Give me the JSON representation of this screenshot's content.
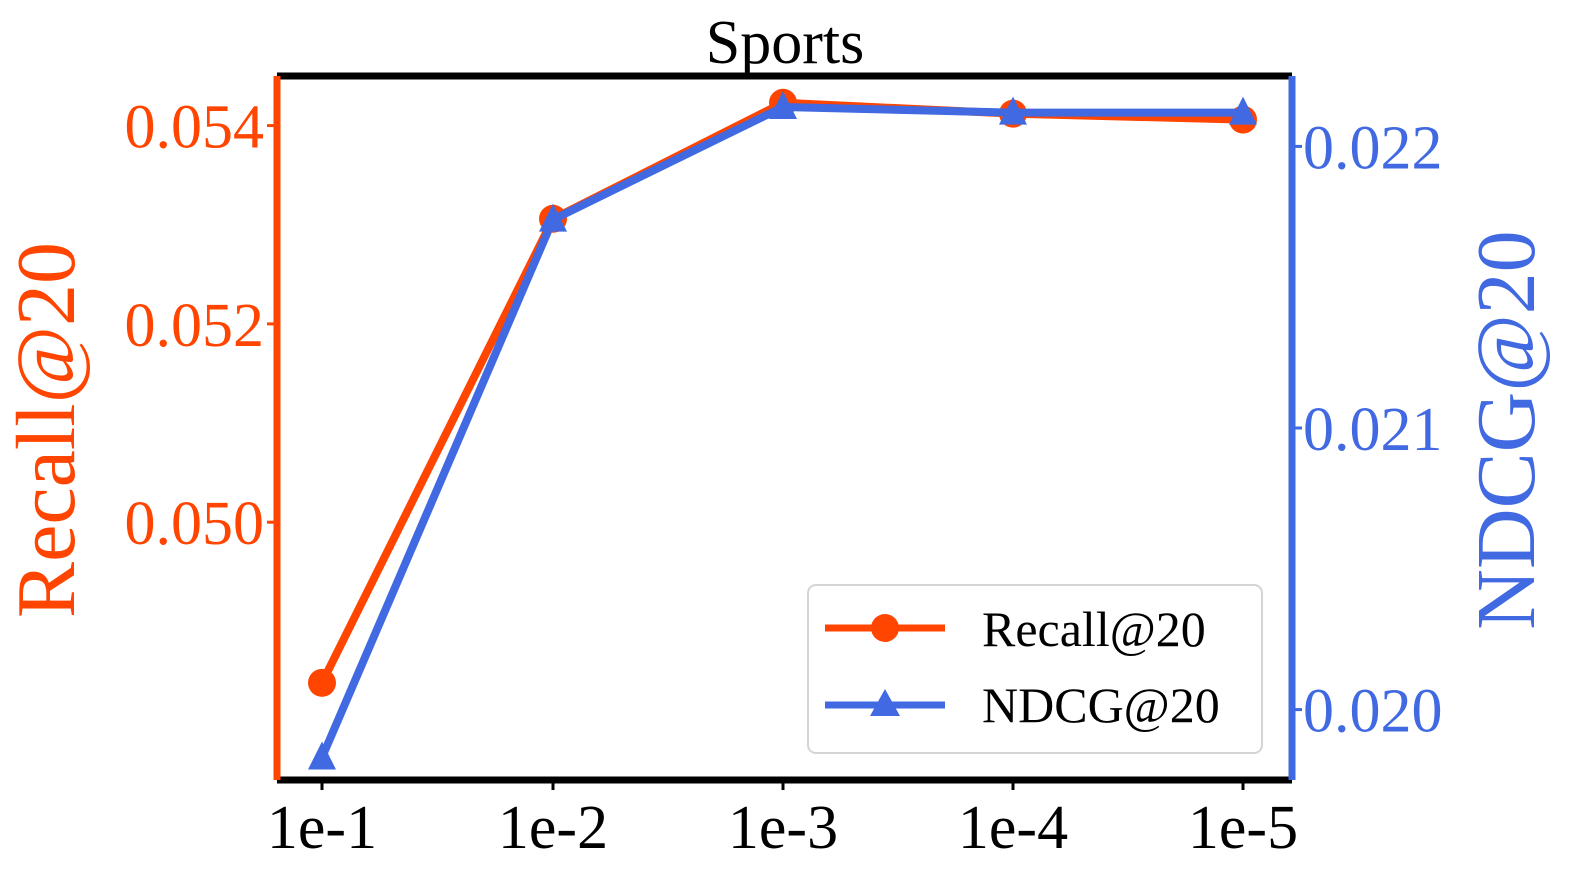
{
  "chart_data": {
    "type": "line",
    "title": "Sports",
    "categories": [
      "1e-1",
      "1e-2",
      "1e-3",
      "1e-4",
      "1e-5"
    ],
    "series": [
      {
        "name": "Recall@20",
        "axis": "left",
        "marker": "circle",
        "color": "#FF4500",
        "values": [
          0.04838,
          0.05306,
          0.05423,
          0.05412,
          0.05406
        ]
      },
      {
        "name": "NDCG@20",
        "axis": "right",
        "marker": "triangle",
        "color": "#4169E1",
        "values": [
          0.01983,
          0.02174,
          0.02214,
          0.02212,
          0.02212
        ]
      }
    ],
    "y_left": {
      "label": "Recall@20",
      "ylim": [
        0.0474,
        0.0545
      ],
      "ticks": [
        0.05,
        0.052,
        0.054
      ],
      "tick_labels": [
        "0.050",
        "0.052",
        "0.054"
      ]
    },
    "y_right": {
      "label": "NDCG@20",
      "ylim": [
        0.01975,
        0.02225
      ],
      "ticks": [
        0.02,
        0.021,
        0.022
      ],
      "tick_labels": [
        "0.020",
        "0.021",
        "0.022"
      ]
    },
    "legend_position": "bottom-right",
    "grid": false
  }
}
